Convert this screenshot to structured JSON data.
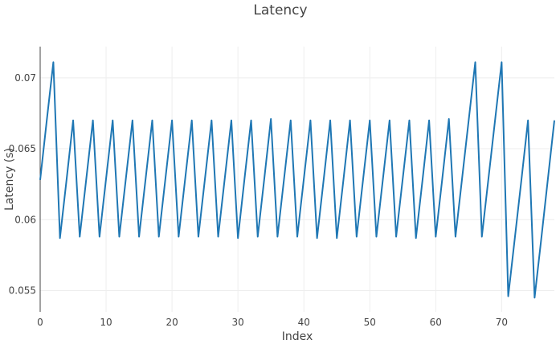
{
  "chart_data": {
    "type": "line",
    "title": "Latency",
    "xlabel": "Index",
    "ylabel": "Latency (s)",
    "xlim": [
      0,
      78
    ],
    "ylim": [
      0.0535,
      0.0722
    ],
    "x_ticks": [
      0,
      10,
      20,
      30,
      40,
      50,
      60,
      70
    ],
    "y_ticks": [
      0.055,
      0.06,
      0.065,
      0.07
    ],
    "y_tick_labels": [
      "0.055",
      "0.06",
      "0.065",
      "0.07"
    ],
    "grid": true,
    "legend": "none",
    "series_color": "#1f77b4",
    "series": [
      {
        "values": [
          0.0628,
          0.067,
          0.0711,
          0.0587,
          0.0628,
          0.067,
          0.0588,
          0.0629,
          0.067,
          0.0588,
          0.0629,
          0.067,
          0.0588,
          0.0629,
          0.067,
          0.0588,
          0.0629,
          0.067,
          0.0588,
          0.0629,
          0.067,
          0.0588,
          0.0629,
          0.067,
          0.0588,
          0.0629,
          0.067,
          0.0588,
          0.0629,
          0.067,
          0.0587,
          0.0629,
          0.067,
          0.0588,
          0.0629,
          0.0671,
          0.0588,
          0.0629,
          0.067,
          0.0588,
          0.0629,
          0.067,
          0.0587,
          0.0628,
          0.067,
          0.0587,
          0.0628,
          0.067,
          0.0588,
          0.0629,
          0.067,
          0.0588,
          0.0629,
          0.067,
          0.0588,
          0.0629,
          0.067,
          0.0587,
          0.0628,
          0.067,
          0.0588,
          0.0629,
          0.0671,
          0.0588,
          0.0629,
          0.067,
          0.0711,
          0.0588,
          0.0629,
          0.067,
          0.0711,
          0.0546,
          0.0587,
          0.0628,
          0.067,
          0.0545,
          0.0586,
          0.0628,
          0.067
        ]
      }
    ]
  }
}
